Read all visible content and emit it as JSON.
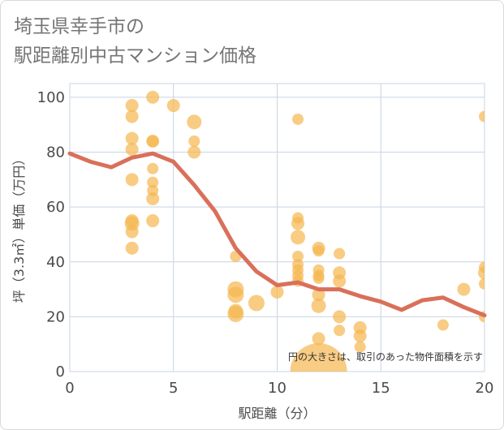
{
  "title": "埼玉県幸手市の\n駅距離別中古マンション価格",
  "chart_data": {
    "type": "scatter",
    "title": "埼玉県幸手市の駅距離別中古マンション価格",
    "xlabel": "駅距離（分）",
    "ylabel": "坪（3.3㎡）単価（万円）",
    "xlim": [
      0,
      20
    ],
    "ylim": [
      0,
      105
    ],
    "xticks": [
      0,
      5,
      10,
      15,
      20
    ],
    "yticks": [
      0,
      20,
      40,
      60,
      80,
      100
    ],
    "grid": true,
    "note": "円の大きさは、取引のあった物件面積を示す",
    "colors": {
      "bubble": "#f5b74e",
      "line": "#d9705a",
      "grid": "#c9d4e3"
    },
    "series": [
      {
        "type": "scatter",
        "points": [
          {
            "x": 3,
            "y": 97,
            "s": 8
          },
          {
            "x": 3,
            "y": 93,
            "s": 8
          },
          {
            "x": 3,
            "y": 85,
            "s": 8
          },
          {
            "x": 3,
            "y": 81,
            "s": 8
          },
          {
            "x": 3,
            "y": 70,
            "s": 8
          },
          {
            "x": 3,
            "y": 55,
            "s": 8
          },
          {
            "x": 3,
            "y": 54,
            "s": 9
          },
          {
            "x": 3,
            "y": 51,
            "s": 8
          },
          {
            "x": 3,
            "y": 45,
            "s": 8
          },
          {
            "x": 4,
            "y": 100,
            "s": 8
          },
          {
            "x": 4,
            "y": 84,
            "s": 8
          },
          {
            "x": 4,
            "y": 84,
            "s": 7
          },
          {
            "x": 4,
            "y": 74,
            "s": 7
          },
          {
            "x": 4,
            "y": 69,
            "s": 7
          },
          {
            "x": 4,
            "y": 66,
            "s": 7
          },
          {
            "x": 4,
            "y": 63,
            "s": 8
          },
          {
            "x": 4,
            "y": 55,
            "s": 8
          },
          {
            "x": 5,
            "y": 97,
            "s": 8
          },
          {
            "x": 6,
            "y": 91,
            "s": 9
          },
          {
            "x": 6,
            "y": 84,
            "s": 7
          },
          {
            "x": 6,
            "y": 80,
            "s": 8
          },
          {
            "x": 8,
            "y": 42,
            "s": 7
          },
          {
            "x": 8,
            "y": 30,
            "s": 10
          },
          {
            "x": 8,
            "y": 28,
            "s": 10
          },
          {
            "x": 8,
            "y": 22,
            "s": 9
          },
          {
            "x": 8,
            "y": 21,
            "s": 10
          },
          {
            "x": 9,
            "y": 25,
            "s": 10
          },
          {
            "x": 10,
            "y": 29,
            "s": 8
          },
          {
            "x": 11,
            "y": 92,
            "s": 7
          },
          {
            "x": 11,
            "y": 56,
            "s": 7
          },
          {
            "x": 11,
            "y": 54,
            "s": 8
          },
          {
            "x": 11,
            "y": 49,
            "s": 9
          },
          {
            "x": 11,
            "y": 42,
            "s": 7
          },
          {
            "x": 11,
            "y": 39,
            "s": 7
          },
          {
            "x": 11,
            "y": 37,
            "s": 7
          },
          {
            "x": 11,
            "y": 35,
            "s": 7
          },
          {
            "x": 11,
            "y": 33,
            "s": 7
          },
          {
            "x": 12,
            "y": 45,
            "s": 8
          },
          {
            "x": 12,
            "y": 44,
            "s": 7
          },
          {
            "x": 12,
            "y": 37,
            "s": 7
          },
          {
            "x": 12,
            "y": 35,
            "s": 7
          },
          {
            "x": 12,
            "y": 34,
            "s": 7
          },
          {
            "x": 12,
            "y": 28,
            "s": 8
          },
          {
            "x": 12,
            "y": 24,
            "s": 9
          },
          {
            "x": 12,
            "y": 12,
            "s": 8
          },
          {
            "x": 12,
            "y": 0,
            "s": 35
          },
          {
            "x": 13,
            "y": 43,
            "s": 7
          },
          {
            "x": 13,
            "y": 36,
            "s": 8
          },
          {
            "x": 13,
            "y": 33,
            "s": 8
          },
          {
            "x": 13,
            "y": 20,
            "s": 8
          },
          {
            "x": 13,
            "y": 15,
            "s": 7
          },
          {
            "x": 14,
            "y": 16,
            "s": 8
          },
          {
            "x": 14,
            "y": 13,
            "s": 8
          },
          {
            "x": 14,
            "y": 9,
            "s": 7
          },
          {
            "x": 18,
            "y": 17,
            "s": 7
          },
          {
            "x": 19,
            "y": 30,
            "s": 8
          },
          {
            "x": 20,
            "y": 93,
            "s": 7
          },
          {
            "x": 20,
            "y": 38,
            "s": 7
          },
          {
            "x": 20,
            "y": 36,
            "s": 8
          },
          {
            "x": 20,
            "y": 32,
            "s": 7
          },
          {
            "x": 20,
            "y": 20,
            "s": 7
          }
        ]
      },
      {
        "type": "line",
        "x": [
          0,
          1,
          2,
          3,
          4,
          5,
          6,
          7,
          8,
          9,
          10,
          11,
          12,
          13,
          14,
          15,
          16,
          17,
          18,
          19,
          20
        ],
        "y": [
          79.5,
          76.5,
          74.5,
          78,
          79.5,
          76.5,
          68,
          58.5,
          45,
          36.5,
          31.5,
          32.5,
          30,
          30,
          27.5,
          25.5,
          22.5,
          26,
          27,
          23.5,
          20.5
        ]
      }
    ]
  }
}
